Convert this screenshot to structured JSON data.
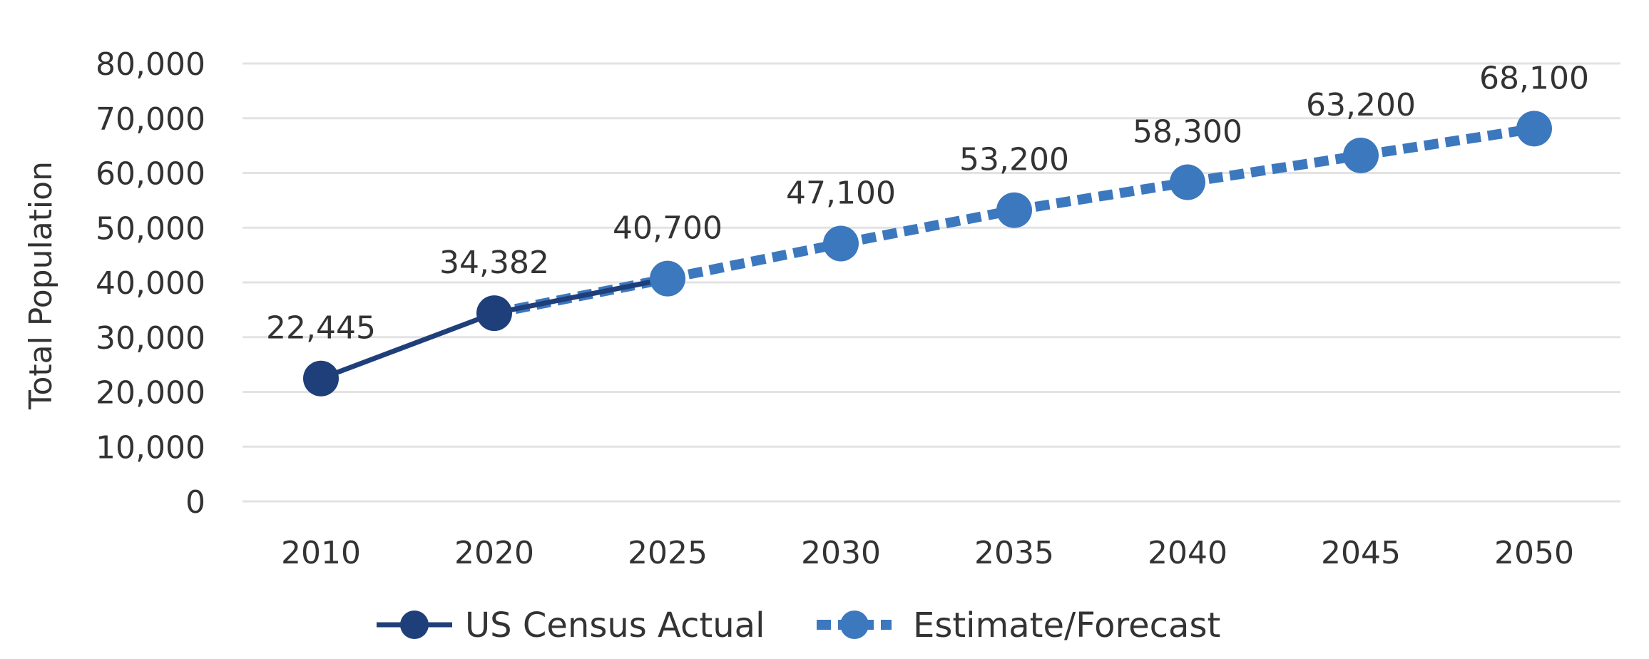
{
  "chart_data": {
    "type": "line",
    "title": "",
    "xlabel": "",
    "ylabel": "Total Population",
    "ylim": [
      0,
      80000
    ],
    "yticks": [
      0,
      10000,
      20000,
      30000,
      40000,
      50000,
      60000,
      70000,
      80000
    ],
    "ytick_labels": [
      "0",
      "10,000",
      "20,000",
      "30,000",
      "40,000",
      "50,000",
      "60,000",
      "70,000",
      "80,000"
    ],
    "categories": [
      "2010",
      "2020",
      "2025",
      "2030",
      "2035",
      "2040",
      "2045",
      "2050"
    ],
    "grid": true,
    "legend_position": "bottom",
    "series": [
      {
        "name": "US Census Actual",
        "style": "solid",
        "color": "#1F3F7A",
        "points": [
          {
            "x": "2010",
            "y": 22445,
            "label": "22,445"
          },
          {
            "x": "2020",
            "y": 34382,
            "label": "34,382"
          }
        ]
      },
      {
        "name": "Estimate/Forecast",
        "style": "dashed",
        "color": "#3C78BE",
        "points": [
          {
            "x": "2025",
            "y": 40700,
            "label": "40,700"
          },
          {
            "x": "2030",
            "y": 47100,
            "label": "47,100"
          },
          {
            "x": "2035",
            "y": 53200,
            "label": "53,200"
          },
          {
            "x": "2040",
            "y": 58300,
            "label": "58,300"
          },
          {
            "x": "2045",
            "y": 63200,
            "label": "63,200"
          },
          {
            "x": "2050",
            "y": 68100,
            "label": "68,100"
          }
        ]
      }
    ]
  },
  "colors": {
    "actual": "#1F3F7A",
    "forecast": "#3C78BE",
    "grid": "#E3E3E3",
    "text": "#333333"
  }
}
